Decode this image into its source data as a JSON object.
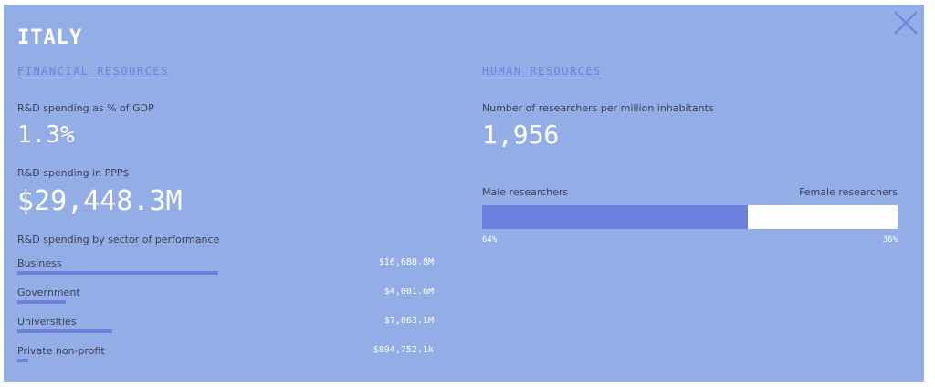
{
  "country": "ITALY",
  "financial": {
    "section_title": "FINANCIAL RESOURCES",
    "gdp_label": "R&D spending as % of GDP",
    "gdp_value": "1.3%",
    "ppp_label": "R&D spending in PPP$",
    "ppp_value": "$29,448.3M",
    "sector_label": "R&D spending by sector of performance",
    "sectors": [
      {
        "name": "Business",
        "value": "$16,688.8M",
        "share": 0.567
      },
      {
        "name": "Government",
        "value": "$4,001.6M",
        "share": 0.136
      },
      {
        "name": "Universities",
        "value": "$7,863.1M",
        "share": 0.267
      },
      {
        "name": "Private non-profit",
        "value": "$894,752.1k",
        "share": 0.03
      }
    ]
  },
  "human": {
    "section_title": "HUMAN RESOURCES",
    "researchers_label": "Number of researchers per million inhabitants",
    "researchers_value": "1,956",
    "male_label": "Male researchers",
    "female_label": "Female researchers",
    "male_share": 0.64,
    "male_pct": "64%",
    "female_pct": "36%"
  },
  "colors": {
    "panel_bg": "#93aee6",
    "accent": "#6b7fdc",
    "label_text": "#3c3f55"
  },
  "icons": {
    "close": "close-icon"
  }
}
